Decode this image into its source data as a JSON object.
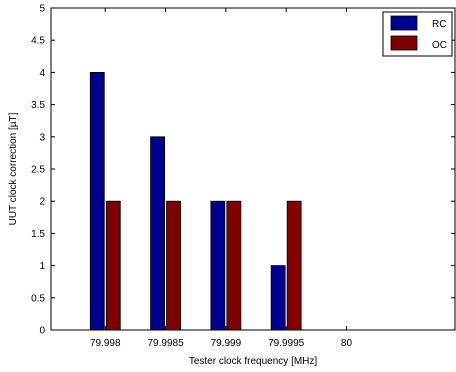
{
  "chart_data": {
    "type": "bar",
    "xlabel": "Tester clock frequency [MHz]",
    "ylabel": "UUT clock correction [µT]",
    "xlim": [
      79.99755,
      80.0009
    ],
    "ylim": [
      0,
      5
    ],
    "xticks": [
      "79.998",
      "79.9985",
      "79.999",
      "79.9995",
      "80"
    ],
    "yticks": [
      "0",
      "0.5",
      "1",
      "1.5",
      "2",
      "2.5",
      "3",
      "3.5",
      "4",
      "4.5",
      "5"
    ],
    "x": [
      79.998,
      79.9985,
      79.999,
      79.9995
    ],
    "series": [
      {
        "name": "RC",
        "color": "#00008f",
        "values": [
          4,
          3,
          2,
          1
        ]
      },
      {
        "name": "OC",
        "color": "#800000",
        "values": [
          2,
          2,
          2,
          2
        ]
      }
    ],
    "legend": "top-right",
    "grid": false
  }
}
